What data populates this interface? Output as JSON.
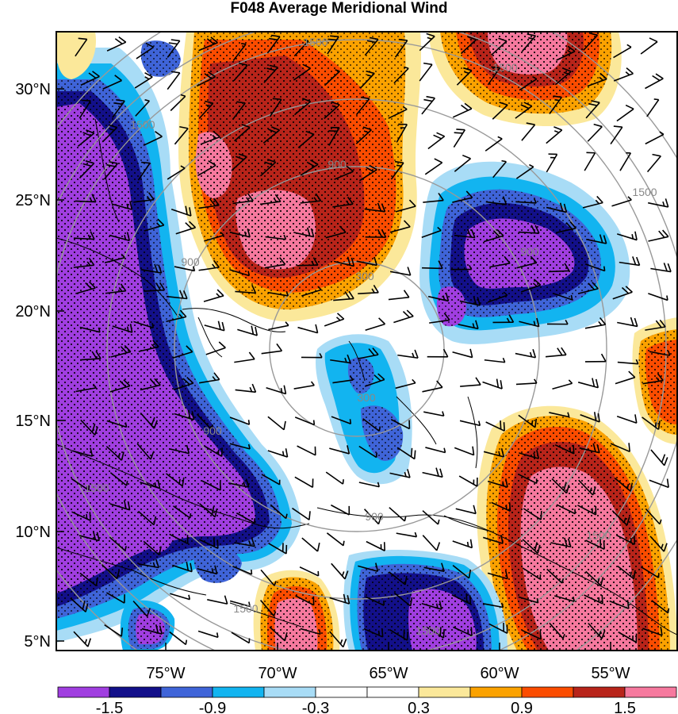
{
  "title": "F048 Average Meridional Wind",
  "map": {
    "lat_ticks": [
      "30°N",
      "25°N",
      "20°N",
      "15°N",
      "10°N",
      "5°N"
    ],
    "lon_ticks": [
      "75°W",
      "70°W",
      "65°W",
      "60°W",
      "55°W"
    ],
    "range_rings": [
      {
        "label": "300",
        "lx": 460,
        "ly": 353
      },
      {
        "label": "300",
        "lx": 462,
        "ly": 506
      },
      {
        "label": "900",
        "lx": 425,
        "ly": 212
      },
      {
        "label": "900",
        "lx": 668,
        "ly": 322
      },
      {
        "label": "900",
        "lx": 268,
        "ly": 548
      },
      {
        "label": "900",
        "lx": 472,
        "ly": 656
      },
      {
        "label": "900",
        "lx": 240,
        "ly": 335
      },
      {
        "label": "1500",
        "lx": 398,
        "ly": 58
      },
      {
        "label": "1500",
        "lx": 637,
        "ly": 90
      },
      {
        "label": "1500",
        "lx": 180,
        "ly": 162
      },
      {
        "label": "1500",
        "lx": 813,
        "ly": 247
      },
      {
        "label": "1500",
        "lx": 122,
        "ly": 620
      },
      {
        "label": "1500",
        "lx": 755,
        "ly": 680
      },
      {
        "label": "1500",
        "lx": 310,
        "ly": 772
      },
      {
        "label": "1500",
        "lx": 540,
        "ly": 800
      }
    ]
  },
  "colorbar": {
    "labels": [
      "-1.5",
      "-0.9",
      "-0.3",
      "0.3",
      "0.9",
      "1.5"
    ],
    "colors": [
      "#a03ee0",
      "#13108a",
      "#3f64d8",
      "#12b4f0",
      "#a8dcf6",
      "#ffffff",
      "#ffffff",
      "#fbe89a",
      "#fba200",
      "#fb4c00",
      "#b8241a",
      "#f6799e"
    ]
  },
  "fill_colors": {
    "purple": "#a03ee0",
    "navy": "#13108a",
    "blue": "#3f64d8",
    "cyan": "#12b4f0",
    "lightblue": "#a8dcf6",
    "yellow": "#fbe89a",
    "orange": "#fba200",
    "redorange": "#fb4c00",
    "darkred": "#b8241a",
    "pink": "#f6799e"
  }
}
